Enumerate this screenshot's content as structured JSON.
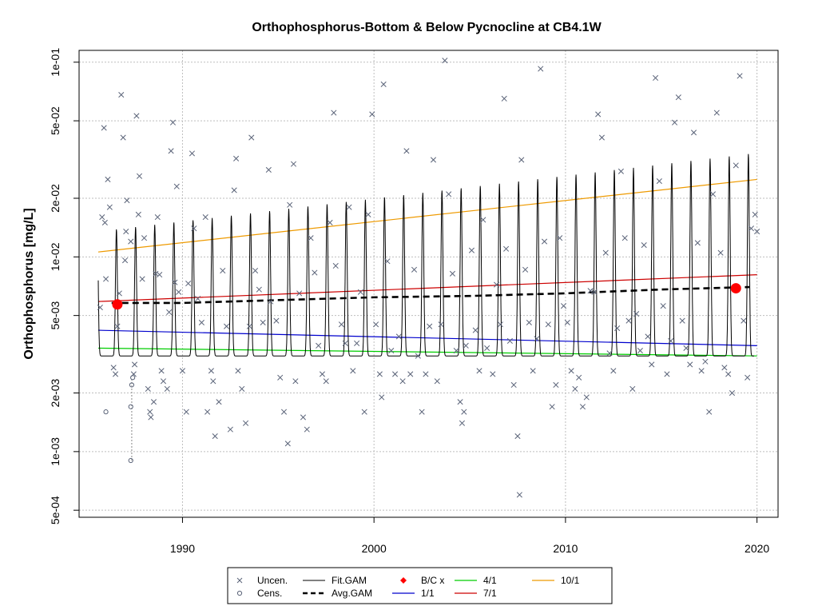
{
  "chart_data": {
    "type": "scatter",
    "title": "Orthophosphorus-Bottom & Below Pycnocline at CB4.1W",
    "xlabel": "",
    "ylabel": "Orthophosphorus [mg/L]",
    "y_scale": "log",
    "xlim": [
      1984.6,
      2021.1
    ],
    "ylim": [
      0.00046,
      0.115
    ],
    "x_ticks": [
      1990,
      2000,
      2010,
      2020
    ],
    "x_tick_labels": [
      "1990",
      "2000",
      "2010",
      "2020"
    ],
    "y_ticks": [
      0.0005,
      0.001,
      0.002,
      0.005,
      0.01,
      0.02,
      0.05,
      0.1
    ],
    "y_tick_labels": [
      "5e-04",
      "1e-03",
      "2e-03",
      "5e-03",
      "1e-02",
      "2e-02",
      "5e-02",
      "1e-01"
    ],
    "grid": true,
    "legend_position": "bottom",
    "colors": {
      "points": "#5a6378",
      "fit_gam": "#000000",
      "avg_gam": "#000000",
      "bc_points": "#ff0000",
      "line_1_1": "#0000cd",
      "line_4_1": "#00cd00",
      "line_7_1": "#cd0000",
      "line_10_1": "#ee9a00",
      "grid": "#bebebe"
    },
    "uncensored": [
      [
        1985.7,
        0.0055
      ],
      [
        1985.8,
        0.016
      ],
      [
        1985.9,
        0.046
      ],
      [
        1985.95,
        0.015
      ],
      [
        1986.0,
        0.0077
      ],
      [
        1986.1,
        0.025
      ],
      [
        1986.2,
        0.018
      ],
      [
        1986.4,
        0.0027
      ],
      [
        1986.5,
        0.0025
      ],
      [
        1986.6,
        0.0044
      ],
      [
        1986.7,
        0.0065
      ],
      [
        1986.8,
        0.068
      ],
      [
        1986.9,
        0.041
      ],
      [
        1987.0,
        0.0096
      ],
      [
        1987.05,
        0.0135
      ],
      [
        1987.1,
        0.0195
      ],
      [
        1987.3,
        0.012
      ],
      [
        1987.45,
        0.0025
      ],
      [
        1987.5,
        0.0028
      ],
      [
        1987.6,
        0.053
      ],
      [
        1987.7,
        0.0165
      ],
      [
        1987.75,
        0.026
      ],
      [
        1987.9,
        0.0077
      ],
      [
        1988.0,
        0.0125
      ],
      [
        1988.2,
        0.0021
      ],
      [
        1988.3,
        0.0016
      ],
      [
        1988.35,
        0.0015
      ],
      [
        1988.5,
        0.0018
      ],
      [
        1988.6,
        0.0082
      ],
      [
        1988.7,
        0.016
      ],
      [
        1988.8,
        0.0081
      ],
      [
        1988.9,
        0.0026
      ],
      [
        1989.0,
        0.0023
      ],
      [
        1989.2,
        0.0021
      ],
      [
        1989.3,
        0.0052
      ],
      [
        1989.4,
        0.035
      ],
      [
        1989.5,
        0.049
      ],
      [
        1989.6,
        0.0074
      ],
      [
        1989.7,
        0.023
      ],
      [
        1989.8,
        0.0066
      ],
      [
        1990.0,
        0.0026
      ],
      [
        1990.2,
        0.0016
      ],
      [
        1990.3,
        0.0073
      ],
      [
        1990.5,
        0.034
      ],
      [
        1990.6,
        0.014
      ],
      [
        1990.8,
        0.0061
      ],
      [
        1991.0,
        0.0046
      ],
      [
        1991.2,
        0.016
      ],
      [
        1991.3,
        0.0016
      ],
      [
        1991.5,
        0.0026
      ],
      [
        1991.6,
        0.0023
      ],
      [
        1991.7,
        0.0012
      ],
      [
        1991.9,
        0.0018
      ],
      [
        1992.1,
        0.0085
      ],
      [
        1992.3,
        0.0044
      ],
      [
        1992.5,
        0.0013
      ],
      [
        1992.7,
        0.022
      ],
      [
        1992.8,
        0.032
      ],
      [
        1992.9,
        0.0026
      ],
      [
        1993.1,
        0.0021
      ],
      [
        1993.3,
        0.0014
      ],
      [
        1993.5,
        0.0044
      ],
      [
        1993.6,
        0.041
      ],
      [
        1993.8,
        0.0085
      ],
      [
        1994.0,
        0.0068
      ],
      [
        1994.2,
        0.0046
      ],
      [
        1994.5,
        0.028
      ],
      [
        1994.6,
        0.0059
      ],
      [
        1994.9,
        0.0047
      ],
      [
        1995.1,
        0.0024
      ],
      [
        1995.3,
        0.0016
      ],
      [
        1995.5,
        0.0011
      ],
      [
        1995.6,
        0.0185
      ],
      [
        1995.8,
        0.03
      ],
      [
        1995.9,
        0.0023
      ],
      [
        1996.1,
        0.0065
      ],
      [
        1996.3,
        0.0015
      ],
      [
        1996.5,
        0.0013
      ],
      [
        1996.7,
        0.0125
      ],
      [
        1996.9,
        0.0083
      ],
      [
        1997.1,
        0.0035
      ],
      [
        1997.3,
        0.0025
      ],
      [
        1997.5,
        0.0023
      ],
      [
        1997.7,
        0.015
      ],
      [
        1997.9,
        0.055
      ],
      [
        1998.0,
        0.009
      ],
      [
        1998.3,
        0.0045
      ],
      [
        1998.5,
        0.0036
      ],
      [
        1998.7,
        0.018
      ],
      [
        1998.9,
        0.0026
      ],
      [
        1999.1,
        0.0036
      ],
      [
        1999.3,
        0.0066
      ],
      [
        1999.5,
        0.0016
      ],
      [
        1999.7,
        0.0165
      ],
      [
        1999.9,
        0.054
      ],
      [
        2000.1,
        0.0045
      ],
      [
        2000.3,
        0.0025
      ],
      [
        2000.4,
        0.0019
      ],
      [
        2000.5,
        0.077
      ],
      [
        2000.7,
        0.0095
      ],
      [
        2000.9,
        0.0033
      ],
      [
        2001.1,
        0.0025
      ],
      [
        2001.3,
        0.0039
      ],
      [
        2001.5,
        0.0023
      ],
      [
        2001.7,
        0.035
      ],
      [
        2001.9,
        0.0025
      ],
      [
        2002.1,
        0.0086
      ],
      [
        2002.3,
        0.0031
      ],
      [
        2002.5,
        0.0016
      ],
      [
        2002.7,
        0.0025
      ],
      [
        2002.9,
        0.0044
      ],
      [
        2003.1,
        0.0315
      ],
      [
        2003.3,
        0.0023
      ],
      [
        2003.5,
        0.0045
      ],
      [
        2003.7,
        0.102
      ],
      [
        2003.9,
        0.021
      ],
      [
        2004.1,
        0.0082
      ],
      [
        2004.3,
        0.0033
      ],
      [
        2004.5,
        0.0018
      ],
      [
        2004.6,
        0.0014
      ],
      [
        2004.7,
        0.0016
      ],
      [
        2004.8,
        0.0035
      ],
      [
        2005.1,
        0.0108
      ],
      [
        2005.3,
        0.0042
      ],
      [
        2005.5,
        0.0026
      ],
      [
        2005.7,
        0.0155
      ],
      [
        2005.9,
        0.0034
      ],
      [
        2006.2,
        0.0025
      ],
      [
        2006.4,
        0.0072
      ],
      [
        2006.6,
        0.0045
      ],
      [
        2006.8,
        0.065
      ],
      [
        2006.9,
        0.011
      ],
      [
        2007.1,
        0.0037
      ],
      [
        2007.3,
        0.0022
      ],
      [
        2007.5,
        0.0012
      ],
      [
        2007.6,
        0.0006
      ],
      [
        2007.7,
        0.0315
      ],
      [
        2007.9,
        0.0086
      ],
      [
        2008.1,
        0.0046
      ],
      [
        2008.3,
        0.0026
      ],
      [
        2008.5,
        0.0038
      ],
      [
        2008.7,
        0.0925
      ],
      [
        2008.9,
        0.012
      ],
      [
        2009.1,
        0.0045
      ],
      [
        2009.3,
        0.0017
      ],
      [
        2009.5,
        0.0022
      ],
      [
        2009.7,
        0.0125
      ],
      [
        2009.9,
        0.0056
      ],
      [
        2010.1,
        0.0046
      ],
      [
        2010.3,
        0.0026
      ],
      [
        2010.5,
        0.0021
      ],
      [
        2010.7,
        0.0024
      ],
      [
        2010.9,
        0.0017
      ],
      [
        2011.1,
        0.0019
      ],
      [
        2011.3,
        0.0067
      ],
      [
        2011.5,
        0.0066
      ],
      [
        2011.7,
        0.054
      ],
      [
        2011.9,
        0.041
      ],
      [
        2012.1,
        0.0105
      ],
      [
        2012.3,
        0.0032
      ],
      [
        2012.5,
        0.0026
      ],
      [
        2012.7,
        0.0043
      ],
      [
        2012.9,
        0.0275
      ],
      [
        2013.1,
        0.0125
      ],
      [
        2013.3,
        0.0047
      ],
      [
        2013.5,
        0.0021
      ],
      [
        2013.7,
        0.0051
      ],
      [
        2013.9,
        0.0033
      ],
      [
        2014.1,
        0.0115
      ],
      [
        2014.3,
        0.0039
      ],
      [
        2014.5,
        0.0028
      ],
      [
        2014.7,
        0.083
      ],
      [
        2014.9,
        0.0245
      ],
      [
        2015.1,
        0.0056
      ],
      [
        2015.3,
        0.0025
      ],
      [
        2015.5,
        0.0037
      ],
      [
        2015.7,
        0.049
      ],
      [
        2015.9,
        0.066
      ],
      [
        2016.1,
        0.0047
      ],
      [
        2016.3,
        0.0034
      ],
      [
        2016.5,
        0.0028
      ],
      [
        2016.7,
        0.0435
      ],
      [
        2016.9,
        0.0118
      ],
      [
        2017.1,
        0.0026
      ],
      [
        2017.3,
        0.0029
      ],
      [
        2017.5,
        0.0016
      ],
      [
        2017.7,
        0.021
      ],
      [
        2017.9,
        0.055
      ],
      [
        2018.1,
        0.0105
      ],
      [
        2018.3,
        0.0027
      ],
      [
        2018.5,
        0.0025
      ],
      [
        2018.7,
        0.002
      ],
      [
        2018.9,
        0.0295
      ],
      [
        2019.1,
        0.085
      ],
      [
        2019.3,
        0.0047
      ],
      [
        2019.5,
        0.0024
      ],
      [
        2019.7,
        0.014
      ],
      [
        2019.9,
        0.0165
      ],
      [
        2020.0,
        0.0135
      ]
    ],
    "censored": [
      [
        1986.0,
        0.0016
      ],
      [
        1987.3,
        0.0009
      ],
      [
        1987.3,
        0.0017
      ],
      [
        1987.35,
        0.0022
      ],
      [
        1987.4,
        0.0024
      ]
    ],
    "censored_ranges": [
      [
        1987.35,
        0.0009,
        0.0024
      ]
    ],
    "fit_gam": {
      "start_year": 1985.6,
      "end_year": 2019.85,
      "peak_phase": 0.55,
      "trough_level": 0.0031,
      "peak_start": 0.0135,
      "peak_end": 0.034
    },
    "avg_gam": [
      [
        1986.3,
        0.0058
      ],
      [
        1990.0,
        0.0058
      ],
      [
        1995.0,
        0.006
      ],
      [
        2000.0,
        0.0062
      ],
      [
        2005.0,
        0.0063
      ],
      [
        2010.0,
        0.0065
      ],
      [
        2015.0,
        0.0068
      ],
      [
        2019.6,
        0.007
      ]
    ],
    "bc_points": [
      [
        1986.6,
        0.0057
      ],
      [
        2018.9,
        0.0069
      ]
    ],
    "trend_lines": [
      {
        "key": "line_1_1",
        "start": [
          1985.6,
          0.0042
        ],
        "end": [
          2020.0,
          0.0035
        ]
      },
      {
        "key": "line_4_1",
        "start": [
          1985.6,
          0.0034
        ],
        "end": [
          2020.0,
          0.0031
        ]
      },
      {
        "key": "line_7_1",
        "start": [
          1985.6,
          0.0059
        ],
        "end": [
          2020.0,
          0.0081
        ]
      },
      {
        "key": "line_10_1",
        "start": [
          1985.6,
          0.0106
        ],
        "end": [
          2020.0,
          0.025
        ]
      }
    ],
    "legend": [
      {
        "label": "Uncen.",
        "symbol": "x-point"
      },
      {
        "label": "Cens.",
        "symbol": "circle-point"
      },
      {
        "label": "Fit.GAM",
        "symbol": "solid-line"
      },
      {
        "label": "Avg.GAM",
        "symbol": "dashed-line"
      },
      {
        "label": "B/C x",
        "symbol": "red-diamond"
      },
      {
        "label": "1/1",
        "symbol": "blue-line"
      },
      {
        "label": "4/1",
        "symbol": "green-line"
      },
      {
        "label": "7/1",
        "symbol": "red-line"
      },
      {
        "label": "10/1",
        "symbol": "orange-line"
      }
    ]
  }
}
